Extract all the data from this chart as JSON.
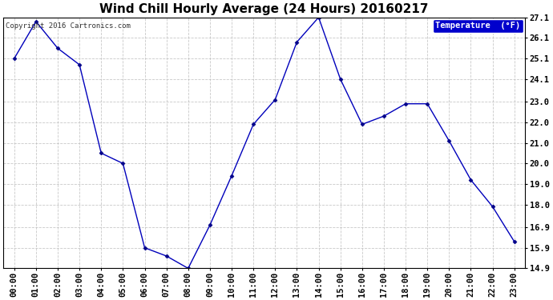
{
  "title": "Wind Chill Hourly Average (24 Hours) 20160217",
  "copyright": "Copyright 2016 Cartronics.com",
  "legend_label": "Temperature  (°F)",
  "x_labels": [
    "00:00",
    "01:00",
    "02:00",
    "03:00",
    "04:00",
    "05:00",
    "06:00",
    "07:00",
    "08:00",
    "09:00",
    "10:00",
    "11:00",
    "12:00",
    "13:00",
    "14:00",
    "15:00",
    "16:00",
    "17:00",
    "18:00",
    "19:00",
    "20:00",
    "21:00",
    "22:00",
    "23:00"
  ],
  "y_values": [
    25.1,
    26.9,
    25.6,
    24.8,
    20.5,
    20.0,
    15.9,
    15.5,
    14.9,
    17.0,
    19.4,
    21.9,
    23.1,
    25.9,
    27.1,
    24.1,
    21.9,
    22.3,
    22.9,
    22.9,
    21.1,
    19.2,
    17.9,
    16.2
  ],
  "ylim_min": 14.9,
  "ylim_max": 27.1,
  "y_ticks": [
    14.9,
    15.9,
    16.9,
    18.0,
    19.0,
    20.0,
    21.0,
    22.0,
    23.0,
    24.1,
    25.1,
    26.1,
    27.1
  ],
  "line_color": "#0000bb",
  "marker_color": "#000088",
  "bg_color": "#ffffff",
  "plot_bg_color": "#ffffff",
  "grid_color": "#bbbbbb",
  "title_color": "#000000",
  "legend_bg": "#0000cc",
  "legend_text_color": "#ffffff",
  "copyright_color": "#333333",
  "title_fontsize": 11,
  "tick_fontsize": 7.5,
  "copyright_fontsize": 6.5
}
